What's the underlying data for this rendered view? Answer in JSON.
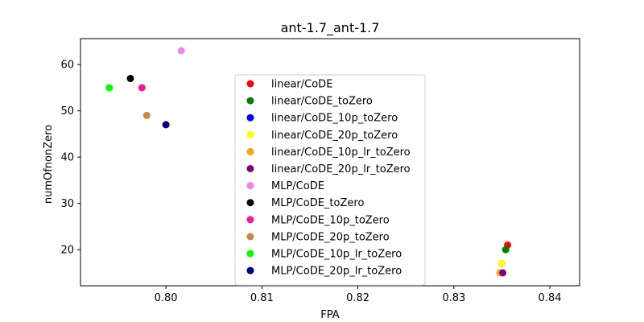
{
  "chart_data": {
    "type": "scatter",
    "title": "ant-1.7_ant-1.7",
    "xlabel": "FPA",
    "ylabel": "numOfnonZero",
    "xlim": [
      0.7911,
      0.8431
    ],
    "ylim": [
      12.2,
      65.6
    ],
    "xticks": [
      0.8,
      0.81,
      0.82,
      0.83,
      0.84
    ],
    "xtick_labels": [
      "0.80",
      "0.81",
      "0.82",
      "0.83",
      "0.84"
    ],
    "yticks": [
      20,
      30,
      40,
      50,
      60
    ],
    "ytick_labels": [
      "20",
      "30",
      "40",
      "50",
      "60"
    ],
    "grid": false,
    "legend_position": "center",
    "series": [
      {
        "name": "linear/CoDE",
        "color": "#ff0000",
        "points": [
          {
            "x": 0.8356,
            "y": 21
          }
        ]
      },
      {
        "name": "linear/CoDE_toZero",
        "color": "#008000",
        "points": [
          {
            "x": 0.8354,
            "y": 20
          }
        ]
      },
      {
        "name": "linear/CoDE_10p_toZero",
        "color": "#0000ff",
        "points": [
          {
            "x": 0.835,
            "y": 17
          }
        ]
      },
      {
        "name": "linear/CoDE_20p_toZero",
        "color": "#ffff00",
        "points": [
          {
            "x": 0.835,
            "y": 17
          }
        ]
      },
      {
        "name": "linear/CoDE_10p_lr_toZero",
        "color": "#ffa500",
        "points": [
          {
            "x": 0.8348,
            "y": 15
          }
        ]
      },
      {
        "name": "linear/CoDE_20p_lr_toZero",
        "color": "#800080",
        "points": [
          {
            "x": 0.8351,
            "y": 15
          }
        ]
      },
      {
        "name": "MLP/CoDE",
        "color": "#ee82ee",
        "points": [
          {
            "x": 0.8016,
            "y": 63
          }
        ]
      },
      {
        "name": "MLP/CoDE_toZero",
        "color": "#000000",
        "points": [
          {
            "x": 0.7963,
            "y": 57
          }
        ]
      },
      {
        "name": "MLP/CoDE_10p_toZero",
        "color": "#ff1493",
        "points": [
          {
            "x": 0.7975,
            "y": 55
          }
        ]
      },
      {
        "name": "MLP/CoDE_20p_toZero",
        "color": "#cd853f",
        "points": [
          {
            "x": 0.798,
            "y": 49
          }
        ]
      },
      {
        "name": "MLP/CoDE_10p_lr_toZero",
        "color": "#00ff00",
        "points": [
          {
            "x": 0.7941,
            "y": 55
          }
        ]
      },
      {
        "name": "MLP/CoDE_20p_lr_toZero",
        "color": "#000080",
        "points": [
          {
            "x": 0.8,
            "y": 47
          }
        ]
      }
    ]
  }
}
